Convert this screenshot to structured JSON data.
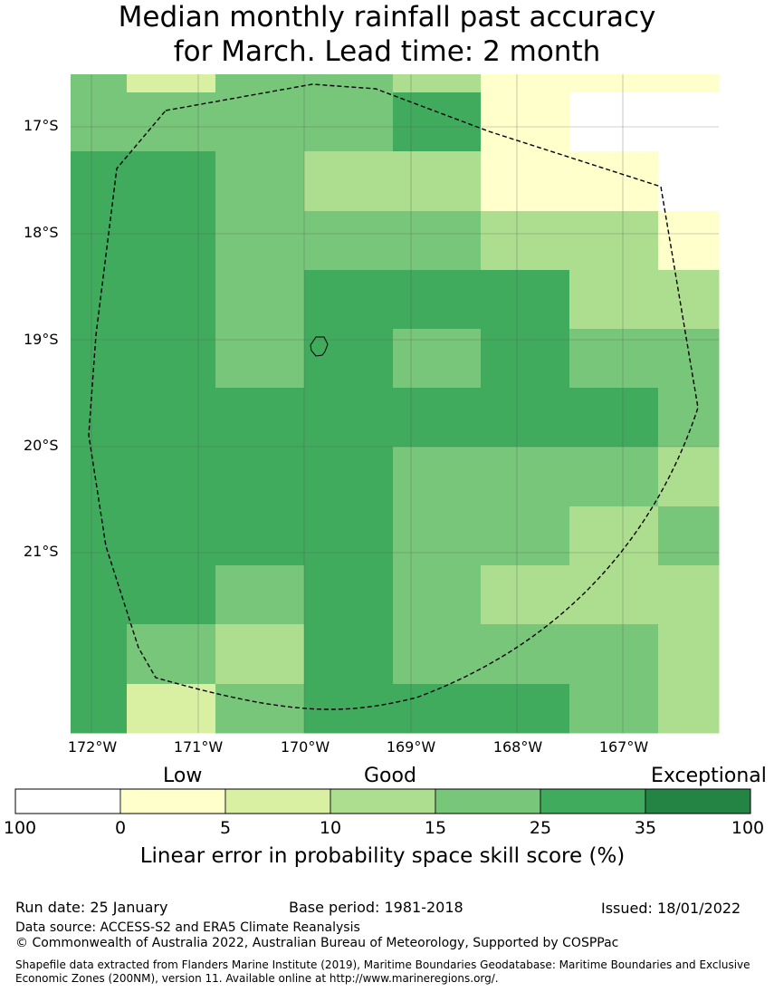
{
  "title": {
    "line1": "Median monthly rainfall past accuracy",
    "line2": "for March. Lead time: 2 month"
  },
  "map": {
    "lat_labels": [
      "17°S",
      "18°S",
      "19°S",
      "20°S",
      "21°S"
    ],
    "lon_labels": [
      "172°W",
      "171°W",
      "170°W",
      "169°W",
      "168°W",
      "167°W"
    ],
    "grid": [
      [
        "l15",
        "l5",
        "l15",
        "l15",
        "l10",
        "l0",
        "l0",
        "l0"
      ],
      [
        "l15",
        "l15",
        "l15",
        "l15",
        "l25",
        "l0",
        "na",
        "na"
      ],
      [
        "l25",
        "l25",
        "l15",
        "l10",
        "l10",
        "l0",
        "l0",
        "na"
      ],
      [
        "l25",
        "l25",
        "l15",
        "l15",
        "l15",
        "l10",
        "l10",
        "l0"
      ],
      [
        "l25",
        "l25",
        "l15",
        "l25",
        "l25",
        "l25",
        "l10",
        "l10"
      ],
      [
        "l25",
        "l25",
        "l15",
        "l25",
        "l15",
        "l25",
        "l15",
        "l15"
      ],
      [
        "l25",
        "l25",
        "l25",
        "l25",
        "l25",
        "l25",
        "l25",
        "l15"
      ],
      [
        "l25",
        "l25",
        "l25",
        "l25",
        "l15",
        "l15",
        "l15",
        "l10"
      ],
      [
        "l25",
        "l25",
        "l25",
        "l25",
        "l15",
        "l15",
        "l10",
        "l15"
      ],
      [
        "l25",
        "l25",
        "l15",
        "l25",
        "l15",
        "l10",
        "l10",
        "l10"
      ],
      [
        "l25",
        "l15",
        "l10",
        "l25",
        "l15",
        "l15",
        "l15",
        "l10"
      ],
      [
        "l25",
        "l5",
        "l15",
        "l25",
        "l25",
        "l25",
        "l15",
        "l10"
      ]
    ]
  },
  "legend": {
    "categories": [
      "Low",
      "Good",
      "Exceptional"
    ],
    "bins": [
      {
        "key": "na",
        "color": "#ffffff"
      },
      {
        "key": "l0",
        "color": "#ffffcc"
      },
      {
        "key": "l5",
        "color": "#d9f0a3"
      },
      {
        "key": "l10",
        "color": "#addd8e"
      },
      {
        "key": "l15",
        "color": "#78c679"
      },
      {
        "key": "l25",
        "color": "#41ab5d"
      },
      {
        "key": "l35",
        "color": "#238443"
      }
    ],
    "ticks": [
      "100",
      "0",
      "5",
      "10",
      "15",
      "25",
      "35",
      "100"
    ],
    "label": "Linear error in probability space skill score (%)"
  },
  "footer": {
    "run_date": "Run date: 25 January",
    "base_period": "Base period: 1981-2018",
    "issued": "Issued: 18/01/2022",
    "data_source": "Data source: ACCESS-S2 and ERA5 Climate Reanalysis",
    "copyright": "© Commonwealth of Australia 2022, Australian Bureau of Meteorology, Supported by COSPPac",
    "shapefile_line1": "Shapefile data extracted from Flanders Marine Institute (2019), Maritime Boundaries Geodatabase: Maritime Boundaries and Exclusive",
    "shapefile_line2": "Economic Zones (200NM), version 11. Available online at http://www.marineregions.org/."
  }
}
